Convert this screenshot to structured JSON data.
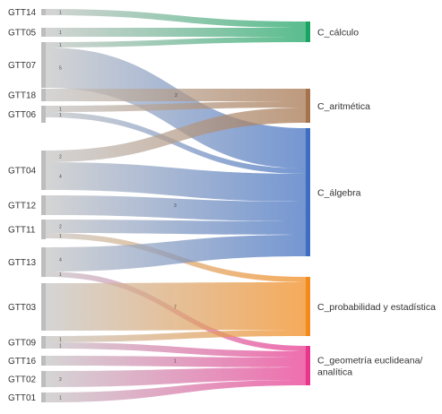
{
  "diagram": {
    "type": "sankey",
    "sources": [
      "GTT14",
      "GTT05",
      "GTT07",
      "GTT18",
      "GTT06",
      "GTT04",
      "GTT12",
      "GTT11",
      "GTT13",
      "GTT03",
      "GTT09",
      "GTT16",
      "GTT02",
      "GTT01"
    ],
    "targets": [
      {
        "id": "calculo",
        "lines": [
          "C_cálculo"
        ],
        "color": "#1aa463"
      },
      {
        "id": "aritmetica",
        "lines": [
          "C_aritmética"
        ],
        "color": "#a5734b"
      },
      {
        "id": "algebra",
        "lines": [
          "C_álgebra"
        ],
        "color": "#3f6ec0"
      },
      {
        "id": "probabilidad",
        "lines": [
          "C_probabilidad y estadística"
        ],
        "color": "#f28a1c"
      },
      {
        "id": "geometria",
        "lines": [
          "C_geometría euclideana/",
          "analítica"
        ],
        "color": "#e8368f"
      }
    ],
    "flows": [
      {
        "source": "GTT14",
        "target": "calculo",
        "label": "1"
      },
      {
        "source": "GTT05",
        "target": "calculo",
        "label": "1"
      },
      {
        "source": "GTT07",
        "target": "calculo",
        "label": "1"
      },
      {
        "source": "GTT07",
        "target": "algebra",
        "label": "5"
      },
      {
        "source": "GTT18",
        "target": "aritmetica",
        "label": "2"
      },
      {
        "source": "GTT06",
        "target": "aritmetica",
        "label": "1"
      },
      {
        "source": "GTT06",
        "target": "algebra",
        "label": "1"
      },
      {
        "source": "GTT04",
        "target": "aritmetica",
        "label": "2"
      },
      {
        "source": "GTT04",
        "target": "algebra",
        "label": "4"
      },
      {
        "source": "GTT12",
        "target": "algebra",
        "label": "3"
      },
      {
        "source": "GTT11",
        "target": "algebra",
        "label": "2"
      },
      {
        "source": "GTT11",
        "target": "probabilidad",
        "label": "1"
      },
      {
        "source": "GTT13",
        "target": "algebra",
        "label": "4"
      },
      {
        "source": "GTT13",
        "target": "geometria",
        "label": "1"
      },
      {
        "source": "GTT03",
        "target": "probabilidad",
        "label": "7"
      },
      {
        "source": "GTT09",
        "target": "probabilidad",
        "label": "1"
      },
      {
        "source": "GTT09",
        "target": "geometria",
        "label": "1"
      },
      {
        "source": "GTT16",
        "target": "geometria",
        "label": "1"
      },
      {
        "source": "GTT02",
        "target": "geometria",
        "label": "2"
      },
      {
        "source": "GTT01",
        "target": "geometria",
        "label": "1"
      }
    ]
  }
}
